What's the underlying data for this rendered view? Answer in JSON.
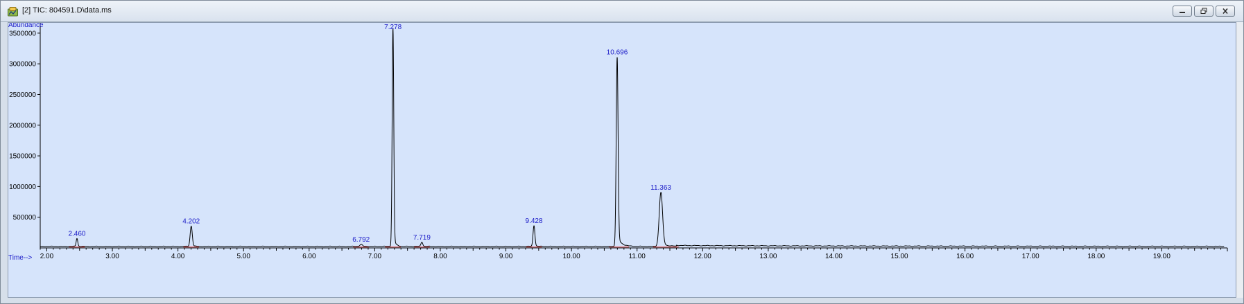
{
  "window": {
    "title": "[2] TIC: 804591.D\\data.ms",
    "buttons": [
      {
        "name": "minimize-button",
        "icon": "minimize-icon"
      },
      {
        "name": "restore-button",
        "icon": "restore-icon"
      },
      {
        "name": "close-button",
        "icon": "close-icon"
      }
    ]
  },
  "colors": {
    "trace": "#000000",
    "label": "#1c1cc8",
    "baseline": "#e23b3b",
    "plot_bg": "#d6e4fb"
  },
  "chart_data": {
    "type": "line",
    "title": "",
    "xlabel": "Time-->",
    "ylabel": "Abundance",
    "xlim": [
      1.9,
      20.0
    ],
    "ylim": [
      0,
      3600000
    ],
    "x_ticks": [
      2.0,
      3.0,
      4.0,
      5.0,
      6.0,
      7.0,
      8.0,
      9.0,
      10.0,
      11.0,
      12.0,
      13.0,
      14.0,
      15.0,
      16.0,
      17.0,
      18.0,
      19.0
    ],
    "x_tick_labels": [
      "2.00",
      "3.00",
      "4.00",
      "5.00",
      "6.00",
      "7.00",
      "8.00",
      "9.00",
      "10.00",
      "11.00",
      "12.00",
      "13.00",
      "14.00",
      "15.00",
      "16.00",
      "17.00",
      "18.00",
      "19.00"
    ],
    "y_ticks": [
      500000,
      1000000,
      1500000,
      2000000,
      2500000,
      3000000,
      3500000
    ],
    "y_tick_labels": [
      "500000",
      "1000000",
      "1500000",
      "2000000",
      "2500000",
      "3000000",
      "3500000"
    ],
    "baseline": 25000,
    "peaks": [
      {
        "label": "2.460",
        "rt": 2.46,
        "height": 130000,
        "width": 0.012,
        "tail": 0.02
      },
      {
        "label": "4.202",
        "rt": 4.202,
        "height": 330000,
        "width": 0.016,
        "tail": 0.03
      },
      {
        "label": "6.792",
        "rt": 6.792,
        "height": 30000,
        "width": 0.02,
        "tail": 0.02
      },
      {
        "label": "7.278",
        "rt": 7.278,
        "height": 3550000,
        "width": 0.012,
        "tail": 0.03
      },
      {
        "label": "7.719",
        "rt": 7.719,
        "height": 70000,
        "width": 0.014,
        "tail": 0.02
      },
      {
        "label": "9.428",
        "rt": 9.428,
        "height": 340000,
        "width": 0.014,
        "tail": 0.03
      },
      {
        "label": "10.696",
        "rt": 10.696,
        "height": 3080000,
        "width": 0.014,
        "tail": 0.06
      },
      {
        "label": "11.363",
        "rt": 11.363,
        "height": 880000,
        "width": 0.025,
        "tail": 0.09
      }
    ]
  }
}
